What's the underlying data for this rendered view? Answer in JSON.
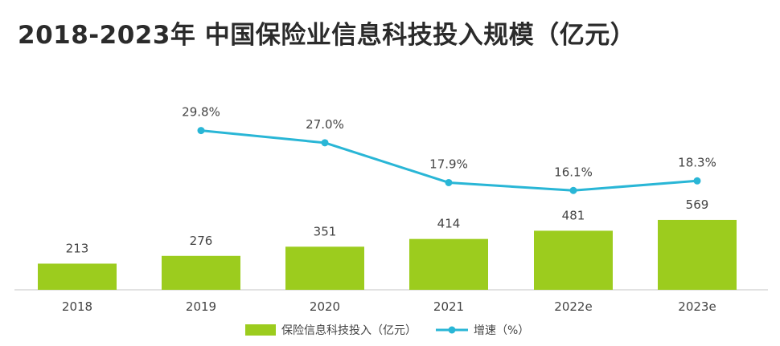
{
  "chart_data": {
    "type": "bar",
    "title": "2018-2023年 中国保险业信息科技投入规模（亿元）",
    "categories": [
      "2018",
      "2019",
      "2020",
      "2021",
      "2022e",
      "2023e"
    ],
    "series": [
      {
        "name": "保险信息科技投入（亿元）",
        "type": "bar",
        "values": [
          213,
          276,
          351,
          414,
          481,
          569
        ],
        "labels": [
          "213",
          "276",
          "351",
          "414",
          "481",
          "569"
        ],
        "color": "#9ccc1e"
      },
      {
        "name": "增速（%）",
        "type": "line",
        "values": [
          null,
          29.8,
          27.0,
          17.9,
          16.1,
          18.3
        ],
        "labels": [
          "",
          "29.8%",
          "27.0%",
          "17.9%",
          "16.1%",
          "18.3%"
        ],
        "color": "#29b6d6"
      }
    ],
    "legend": "bottom",
    "grid": false
  }
}
